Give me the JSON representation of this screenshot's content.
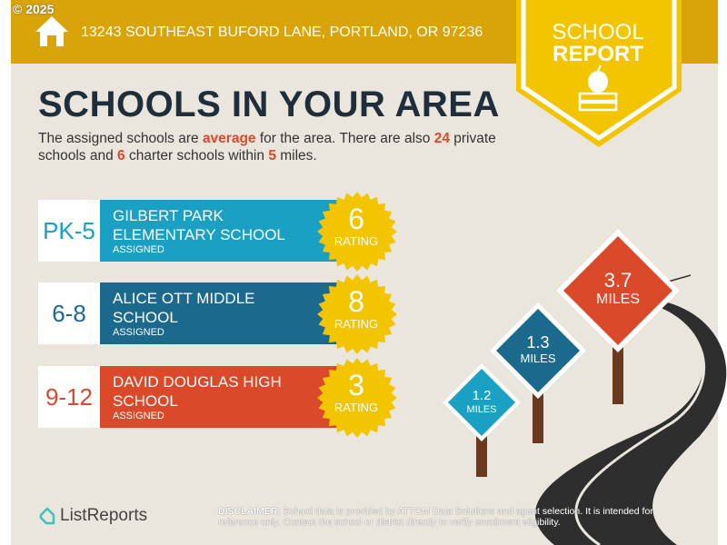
{
  "copyright": "© 2025",
  "address": "13243 SOUTHEAST BUFORD LANE, PORTLAND, OR 97236",
  "badge": {
    "line1": "SCHOOL",
    "line2": "REPORT"
  },
  "title": "SCHOOLS IN YOUR AREA",
  "summary": {
    "p1": "The assigned schools are ",
    "quality": "average",
    "p2": " for the area. There are also ",
    "private_count": "24",
    "p3": " private schools and ",
    "charter_count": "6",
    "p4": " charter schools within ",
    "radius": "5",
    "p5": " miles."
  },
  "schools": [
    {
      "grade": "PK-5",
      "name": "GILBERT PARK ELEMENTARY SCHOOL",
      "status": "ASSIGNED",
      "rating": "6",
      "rating_label": "RATING",
      "color": "#1AA0C3"
    },
    {
      "grade": "6-8",
      "name": "ALICE OTT MIDDLE SCHOOL",
      "status": "ASSIGNED",
      "rating": "8",
      "rating_label": "RATING",
      "color": "#1B6A8E"
    },
    {
      "grade": "9-12",
      "name": "DAVID DOUGLAS HIGH SCHOOL",
      "status": "ASSIGNED",
      "rating": "3",
      "rating_label": "RATING",
      "color": "#D9492A"
    }
  ],
  "signs": [
    {
      "distance": "1.2",
      "unit": "MILES",
      "color": "#1AA0C3"
    },
    {
      "distance": "1.3",
      "unit": "MILES",
      "color": "#1B6A8E"
    },
    {
      "distance": "3.7",
      "unit": "MILES",
      "color": "#D9492A"
    }
  ],
  "logo": "ListReports",
  "disclaimer": {
    "label": "DISCLAIMER:",
    "text": " School data is provided by ATTOM Data Solutions and agent selection. It is intended for reference only. Contact the school or district directly to verify enrollment eligibility."
  }
}
